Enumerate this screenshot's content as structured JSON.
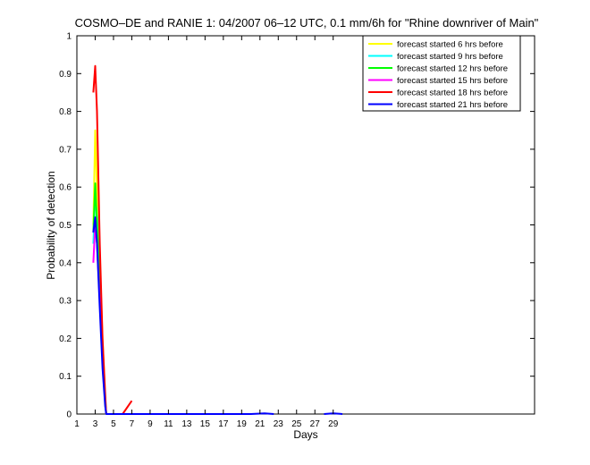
{
  "chart_data": {
    "type": "line",
    "title": "COSMO–DE and RANIE 1: 04/2007 06–12 UTC, 0.1 mm/6h for \"Rhine downriver of Main\"",
    "xlabel": "Days",
    "ylabel": "Probability of detection",
    "xlim": [
      1,
      51
    ],
    "ylim": [
      0,
      1
    ],
    "x_ticks": [
      1,
      3,
      5,
      7,
      9,
      11,
      13,
      15,
      17,
      19,
      21,
      23,
      25,
      27,
      29
    ],
    "x_tick_labels": [
      "1",
      "3",
      "5",
      "7",
      "9",
      "11",
      "13",
      "15",
      "17",
      "19",
      "21",
      "23",
      "25",
      "27",
      "29"
    ],
    "y_ticks": [
      0,
      0.1,
      0.2,
      0.3,
      0.4,
      0.5,
      0.6,
      0.7,
      0.8,
      0.9,
      1
    ],
    "y_tick_labels": [
      "0",
      "0.1",
      "0.2",
      "0.3",
      "0.4",
      "0.5",
      "0.6",
      "0.7",
      "0.8",
      "0.9",
      "1"
    ],
    "grid": false,
    "legend_position": "top-right",
    "series": [
      {
        "name": "forecast started 6 hrs before",
        "color": "#ffff00",
        "x": [
          2.8,
          3.0,
          3.2,
          3.5,
          3.8,
          4.1,
          4.2
        ],
        "y": [
          0.5,
          0.75,
          0.6,
          0.4,
          0.2,
          0.05,
          0.0
        ]
      },
      {
        "name": "forecast started 9 hrs before",
        "color": "#00ffff",
        "x": [
          2.8,
          3.0,
          3.2,
          3.5,
          3.8,
          4.1,
          4.2
        ],
        "y": [
          0.45,
          0.58,
          0.52,
          0.35,
          0.18,
          0.04,
          0.0
        ]
      },
      {
        "name": "forecast started 12 hrs before",
        "color": "#00ff00",
        "x": [
          2.8,
          3.0,
          3.2,
          3.5,
          3.8,
          4.1,
          4.2
        ],
        "y": [
          0.48,
          0.61,
          0.5,
          0.33,
          0.16,
          0.03,
          0.0
        ]
      },
      {
        "name": "forecast started 15 hrs before",
        "color": "#ff00ff",
        "x": [
          2.8,
          3.0,
          3.2,
          3.5,
          3.8,
          4.1,
          4.2
        ],
        "y": [
          0.4,
          0.5,
          0.45,
          0.3,
          0.15,
          0.03,
          0.0
        ]
      },
      {
        "name": "forecast started 18 hrs before",
        "color": "#ff0000",
        "x": [
          2.8,
          3.0,
          3.2,
          3.5,
          3.8,
          4.1,
          4.2,
          5.0,
          6.0,
          7.0
        ],
        "y": [
          0.85,
          0.92,
          0.8,
          0.45,
          0.2,
          0.05,
          0.0,
          null,
          0.0,
          0.035
        ]
      },
      {
        "name": "forecast started 21 hrs before",
        "color": "#0000ff",
        "x": [
          2.8,
          3.0,
          3.2,
          3.5,
          3.8,
          4.1,
          4.2,
          20.0,
          21.5,
          22.5,
          null,
          28.0,
          29.0,
          30.0,
          null,
          32.0
        ],
        "y": [
          0.48,
          0.52,
          0.45,
          0.28,
          0.12,
          0.02,
          0.0,
          0.0,
          0.002,
          0.0,
          null,
          0.0,
          0.002,
          0.0,
          null,
          0.001
        ]
      }
    ]
  }
}
